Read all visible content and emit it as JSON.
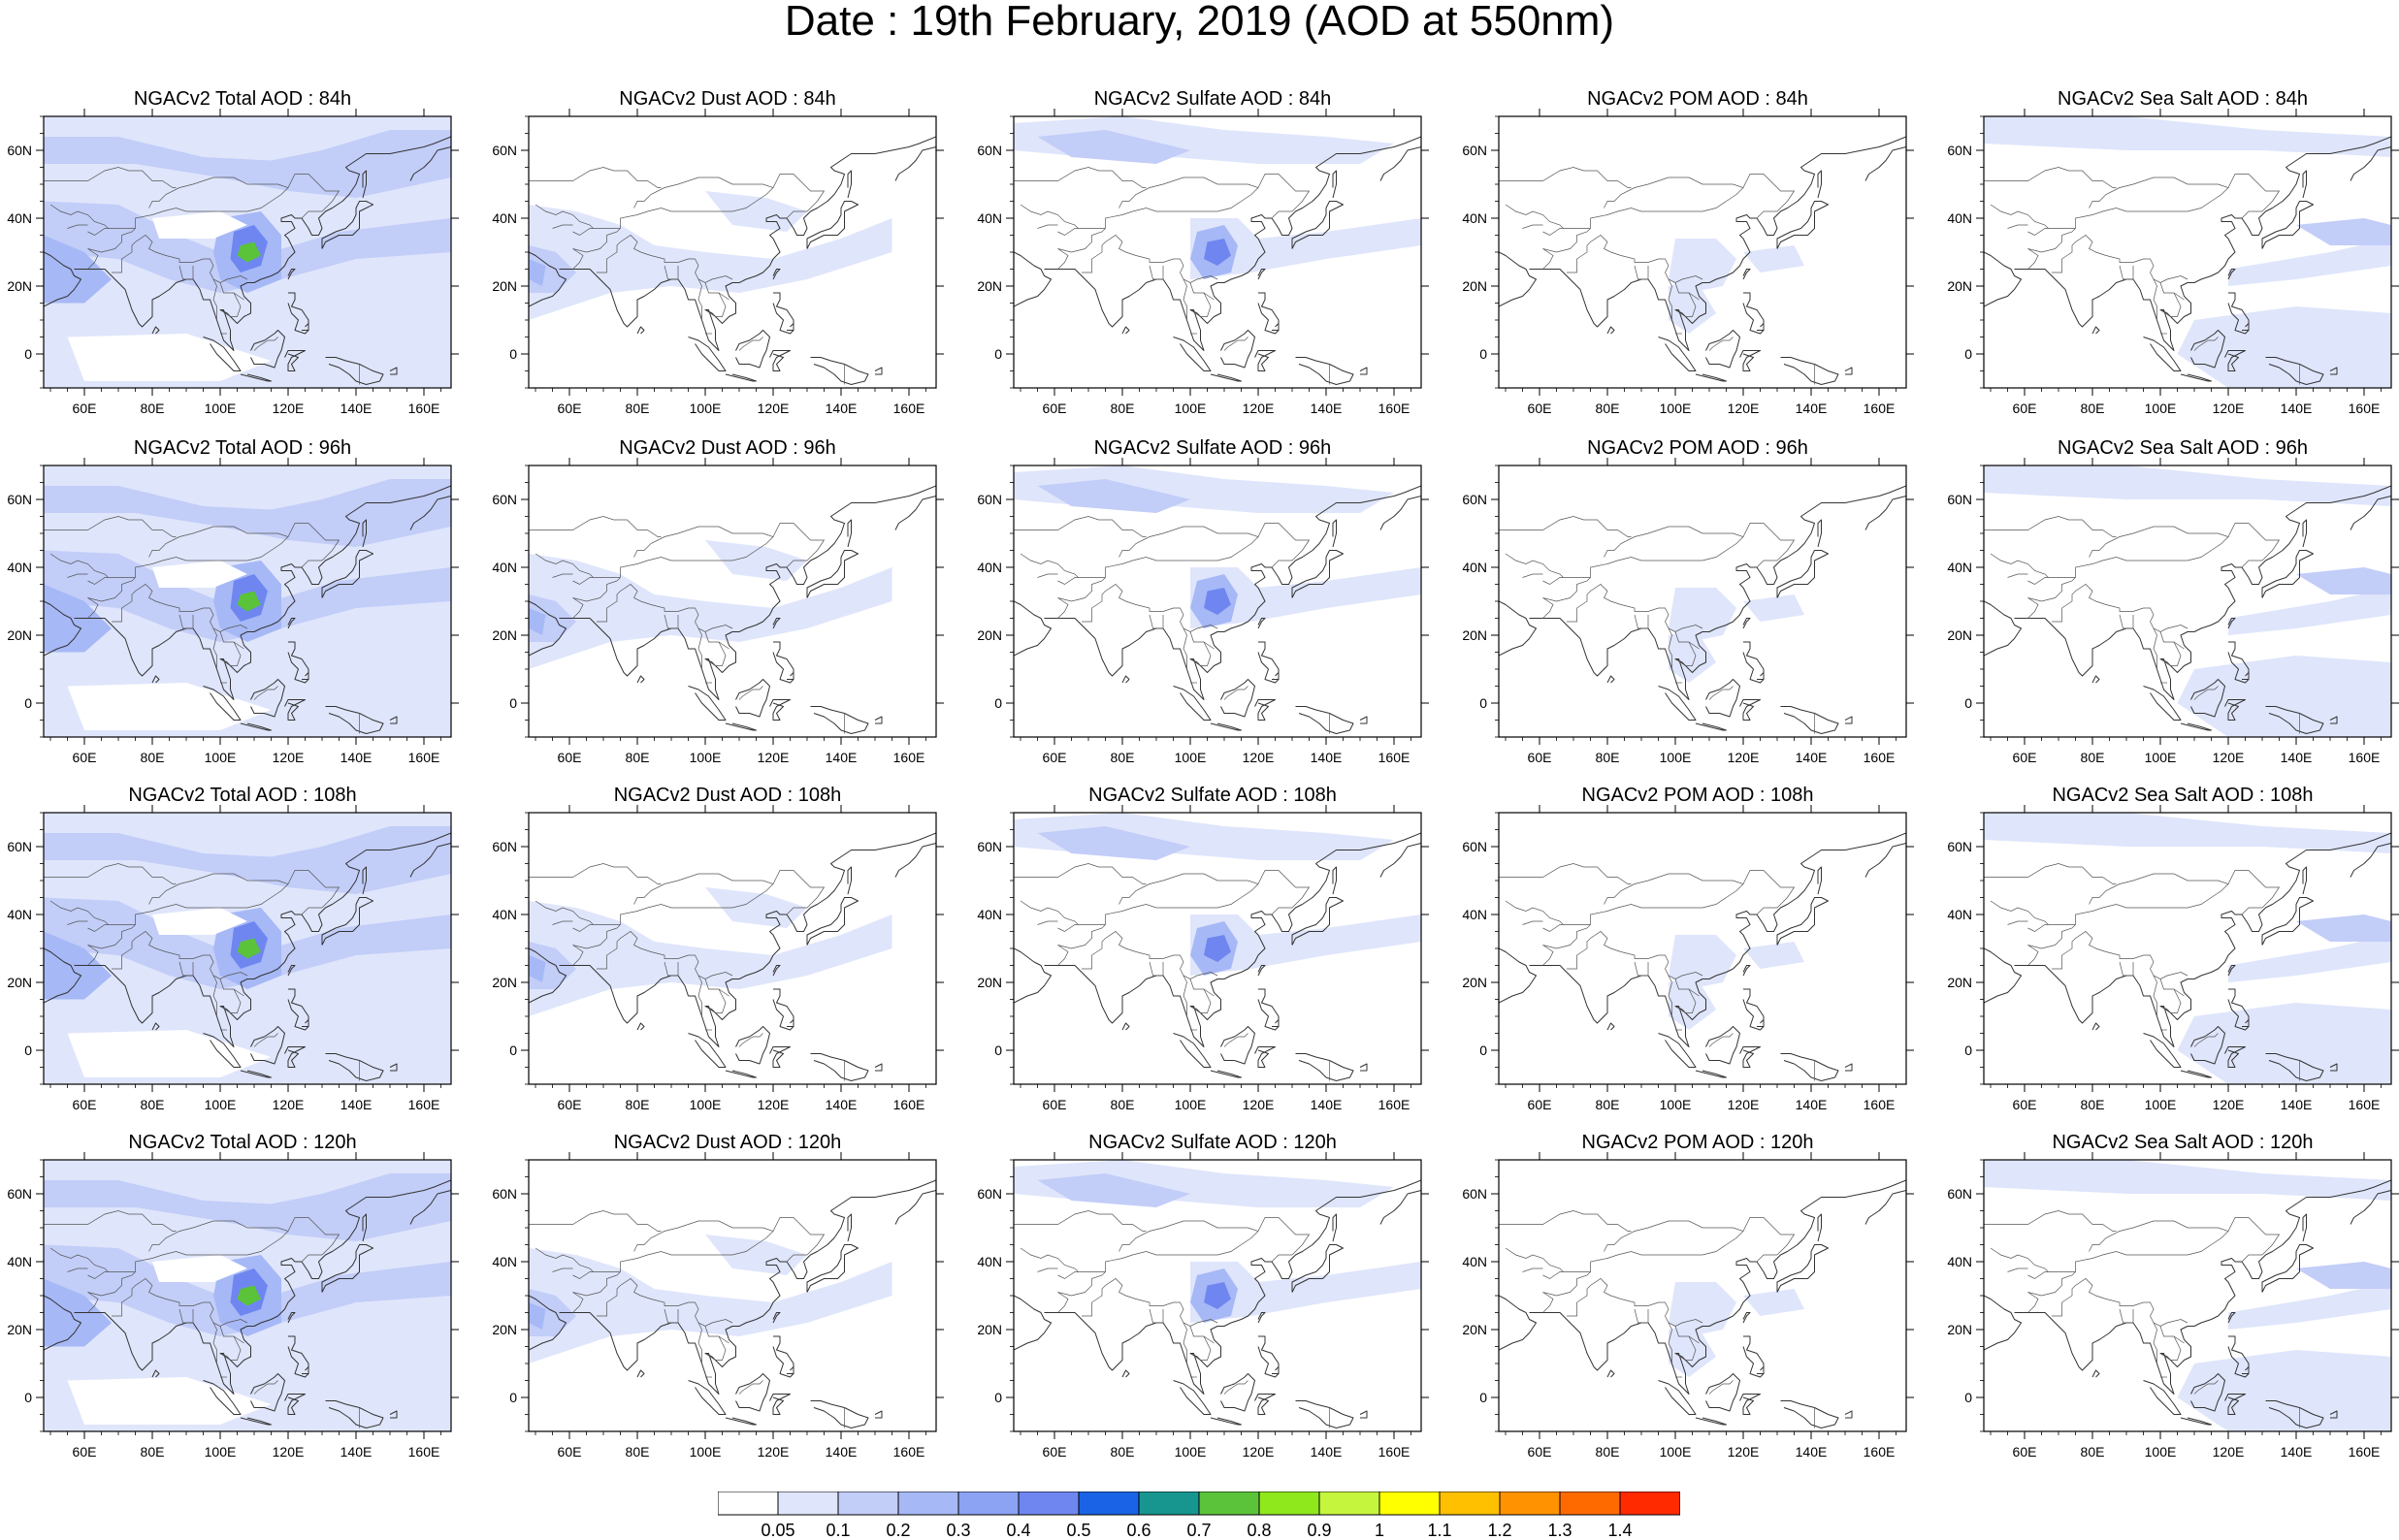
{
  "title": "Date : 19th February, 2019 (AOD at 550nm)",
  "rows": [
    {
      "hour": "84h",
      "titles": [
        "NGACv2 Total AOD : 84h",
        "NGACv2 Dust AOD : 84h",
        "NGACv2 Sulfate AOD : 84h",
        "NGACv2 POM AOD : 84h",
        "NGACv2 Sea Salt AOD : 84h"
      ]
    },
    {
      "hour": "96h",
      "titles": [
        "NGACv2 Total AOD : 96h",
        "NGACv2 Dust AOD : 96h",
        "NGACv2 Sulfate AOD : 96h",
        "NGACv2 POM AOD : 96h",
        "NGACv2 Sea Salt AOD : 96h"
      ]
    },
    {
      "hour": "108h",
      "titles": [
        "NGACv2 Total AOD : 108h",
        "NGACv2 Dust AOD : 108h",
        "NGACv2 Sulfate AOD : 108h",
        "NGACv2 POM AOD : 108h",
        "NGACv2 Sea Salt AOD : 108h"
      ]
    },
    {
      "hour": "120h",
      "titles": [
        "NGACv2 Total AOD : 120h",
        "NGACv2 Dust AOD : 120h",
        "NGACv2 Sulfate AOD : 120h",
        "NGACv2 POM AOD : 120h",
        "NGACv2 Sea Salt  AOD : 120h"
      ]
    }
  ],
  "map": {
    "lon_range": [
      48,
      168
    ],
    "lat_range": [
      -10,
      70
    ],
    "x_ticks": [
      "60E",
      "80E",
      "100E",
      "120E",
      "140E",
      "160E"
    ],
    "x_tick_values": [
      60,
      80,
      100,
      120,
      140,
      160
    ],
    "y_ticks": [
      "60N",
      "40N",
      "20N",
      "0"
    ],
    "y_tick_values": [
      60,
      40,
      20,
      0
    ]
  },
  "colorbar": {
    "labels": [
      "0.05",
      "0.1",
      "0.2",
      "0.3",
      "0.4",
      "0.5",
      "0.6",
      "0.7",
      "0.8",
      "0.9",
      "1",
      "1.1",
      "1.2",
      "1.3",
      "1.4"
    ],
    "colors": [
      "#ffffff",
      "#dfe5fb",
      "#c2cdf8",
      "#a6b8f6",
      "#8ca3f4",
      "#6f86f0",
      "#1a63e6",
      "#16968f",
      "#5ac33a",
      "#8fe81c",
      "#c6f53d",
      "#ffff00",
      "#ffc000",
      "#ff9200",
      "#ff6a00",
      "#ff2a00"
    ]
  },
  "features": {
    "total": [
      [
        [
          [
            48,
            70
          ],
          [
            168,
            70
          ],
          [
            168,
            -10
          ],
          [
            48,
            -10
          ]
        ],
        1
      ],
      [
        [
          [
            48,
            64
          ],
          [
            70,
            64
          ],
          [
            95,
            58
          ],
          [
            115,
            57
          ],
          [
            130,
            60
          ],
          [
            150,
            66
          ],
          [
            168,
            66
          ],
          [
            168,
            52
          ],
          [
            140,
            46
          ],
          [
            120,
            48
          ],
          [
            100,
            52
          ],
          [
            75,
            56
          ],
          [
            48,
            56
          ]
        ],
        2
      ],
      [
        [
          [
            48,
            45
          ],
          [
            70,
            44
          ],
          [
            90,
            34
          ],
          [
            105,
            28
          ],
          [
            115,
            30
          ],
          [
            135,
            36
          ],
          [
            168,
            40
          ],
          [
            168,
            30
          ],
          [
            140,
            28
          ],
          [
            118,
            22
          ],
          [
            100,
            18
          ],
          [
            85,
            22
          ],
          [
            70,
            28
          ],
          [
            48,
            30
          ]
        ],
        2
      ],
      [
        [
          [
            48,
            35
          ],
          [
            60,
            30
          ],
          [
            68,
            22
          ],
          [
            60,
            15
          ],
          [
            48,
            15
          ]
        ],
        3
      ],
      [
        [
          [
            100,
            40
          ],
          [
            112,
            42
          ],
          [
            118,
            35
          ],
          [
            118,
            22
          ],
          [
            108,
            18
          ],
          [
            100,
            22
          ],
          [
            98,
            30
          ]
        ],
        3
      ],
      [
        [
          [
            104,
            36
          ],
          [
            110,
            38
          ],
          [
            114,
            33
          ],
          [
            112,
            26
          ],
          [
            106,
            24
          ],
          [
            103,
            28
          ]
        ],
        5
      ],
      [
        [
          [
            106,
            32
          ],
          [
            110,
            33
          ],
          [
            112,
            29
          ],
          [
            108,
            27
          ],
          [
            105,
            29
          ]
        ],
        8
      ],
      [
        [
          [
            80,
            40
          ],
          [
            100,
            42
          ],
          [
            108,
            38
          ],
          [
            98,
            34
          ],
          [
            82,
            34
          ]
        ],
        0
      ],
      [
        [
          [
            55,
            5
          ],
          [
            90,
            6
          ],
          [
            115,
            -2
          ],
          [
            100,
            -8
          ],
          [
            60,
            -8
          ]
        ],
        0
      ]
    ],
    "dust": [
      [
        [
          [
            48,
            44
          ],
          [
            62,
            42
          ],
          [
            75,
            38
          ],
          [
            85,
            32
          ],
          [
            100,
            30
          ],
          [
            120,
            28
          ],
          [
            140,
            34
          ],
          [
            155,
            40
          ],
          [
            155,
            30
          ],
          [
            130,
            22
          ],
          [
            110,
            18
          ],
          [
            90,
            20
          ],
          [
            72,
            18
          ],
          [
            60,
            14
          ],
          [
            48,
            10
          ]
        ],
        1
      ],
      [
        [
          [
            48,
            32
          ],
          [
            56,
            30
          ],
          [
            62,
            24
          ],
          [
            56,
            18
          ],
          [
            48,
            18
          ]
        ],
        2
      ],
      [
        [
          [
            100,
            48
          ],
          [
            118,
            46
          ],
          [
            130,
            42
          ],
          [
            124,
            36
          ],
          [
            108,
            38
          ]
        ],
        1
      ],
      [
        [
          [
            48,
            28
          ],
          [
            53,
            26
          ],
          [
            52,
            20
          ],
          [
            48,
            22
          ]
        ],
        3
      ]
    ],
    "sulfate": [
      [
        [
          [
            48,
            68
          ],
          [
            80,
            70
          ],
          [
            110,
            66
          ],
          [
            140,
            64
          ],
          [
            160,
            62
          ],
          [
            150,
            56
          ],
          [
            120,
            56
          ],
          [
            95,
            58
          ],
          [
            70,
            58
          ],
          [
            48,
            60
          ]
        ],
        1
      ],
      [
        [
          [
            55,
            64
          ],
          [
            75,
            66
          ],
          [
            100,
            60
          ],
          [
            90,
            56
          ],
          [
            65,
            58
          ]
        ],
        2
      ],
      [
        [
          [
            100,
            40
          ],
          [
            114,
            40
          ],
          [
            120,
            34
          ],
          [
            140,
            36
          ],
          [
            168,
            40
          ],
          [
            168,
            32
          ],
          [
            140,
            28
          ],
          [
            118,
            24
          ],
          [
            100,
            22
          ]
        ],
        1
      ],
      [
        [
          [
            102,
            36
          ],
          [
            110,
            38
          ],
          [
            114,
            32
          ],
          [
            112,
            24
          ],
          [
            104,
            22
          ],
          [
            100,
            28
          ]
        ],
        3
      ],
      [
        [
          [
            105,
            33
          ],
          [
            110,
            34
          ],
          [
            112,
            29
          ],
          [
            108,
            26
          ],
          [
            104,
            28
          ]
        ],
        5
      ]
    ],
    "pom": [
      [
        [
          [
            100,
            34
          ],
          [
            112,
            34
          ],
          [
            118,
            28
          ],
          [
            114,
            20
          ],
          [
            104,
            18
          ],
          [
            98,
            22
          ]
        ],
        1
      ],
      [
        [
          [
            98,
            20
          ],
          [
            106,
            22
          ],
          [
            112,
            12
          ],
          [
            104,
            6
          ],
          [
            98,
            10
          ]
        ],
        1
      ],
      [
        [
          [
            120,
            30
          ],
          [
            135,
            32
          ],
          [
            138,
            26
          ],
          [
            125,
            24
          ]
        ],
        1
      ]
    ],
    "seasalt": [
      [
        [
          [
            48,
            70
          ],
          [
            90,
            70
          ],
          [
            130,
            66
          ],
          [
            168,
            64
          ],
          [
            168,
            58
          ],
          [
            130,
            60
          ],
          [
            90,
            60
          ],
          [
            48,
            62
          ]
        ],
        1
      ],
      [
        [
          [
            120,
            25
          ],
          [
            150,
            30
          ],
          [
            168,
            34
          ],
          [
            168,
            26
          ],
          [
            140,
            22
          ],
          [
            120,
            20
          ]
        ],
        1
      ],
      [
        [
          [
            110,
            10
          ],
          [
            140,
            14
          ],
          [
            168,
            12
          ],
          [
            168,
            -10
          ],
          [
            120,
            -10
          ],
          [
            105,
            0
          ]
        ],
        1
      ],
      [
        [
          [
            140,
            38
          ],
          [
            160,
            40
          ],
          [
            168,
            38
          ],
          [
            168,
            32
          ],
          [
            150,
            32
          ]
        ],
        2
      ]
    ]
  }
}
